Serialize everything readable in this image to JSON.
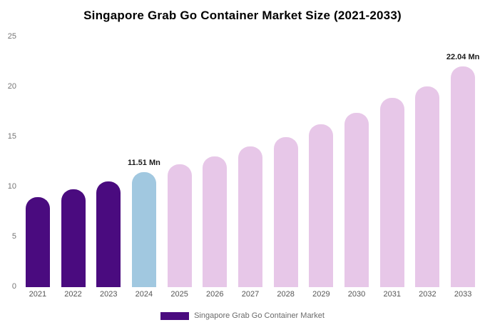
{
  "title": "Singapore Grab Go Container Market Size (2021-2033)",
  "chart_data": {
    "type": "bar",
    "title": "Singapore Grab Go Container Market Size (2021-2033)",
    "categories": [
      "2021",
      "2022",
      "2023",
      "2024",
      "2025",
      "2026",
      "2027",
      "2028",
      "2029",
      "2030",
      "2031",
      "2032",
      "2033"
    ],
    "values": [
      9.0,
      9.8,
      10.6,
      11.51,
      12.3,
      13.1,
      14.1,
      15.0,
      16.3,
      17.4,
      18.9,
      20.1,
      22.04
    ],
    "point_labels": {
      "2024": "11.51 Mn",
      "2033": "22.04 Mn"
    },
    "color_keys": [
      "historical",
      "historical",
      "historical",
      "current",
      "forecast",
      "forecast",
      "forecast",
      "forecast",
      "forecast",
      "forecast",
      "forecast",
      "forecast",
      "forecast"
    ],
    "colors": {
      "historical": "#4a0b7f",
      "current": "#a1c8e0",
      "forecast": "#e7c7e8"
    },
    "xlabel": "",
    "ylabel": "",
    "ylim": [
      0,
      25
    ],
    "yticks": [
      0,
      5,
      10,
      15,
      20,
      25
    ],
    "grid": false,
    "legend_position": "bottom"
  },
  "legend": {
    "label": "Singapore Grab Go Container Market",
    "swatch_color": "#4a0b7f"
  }
}
